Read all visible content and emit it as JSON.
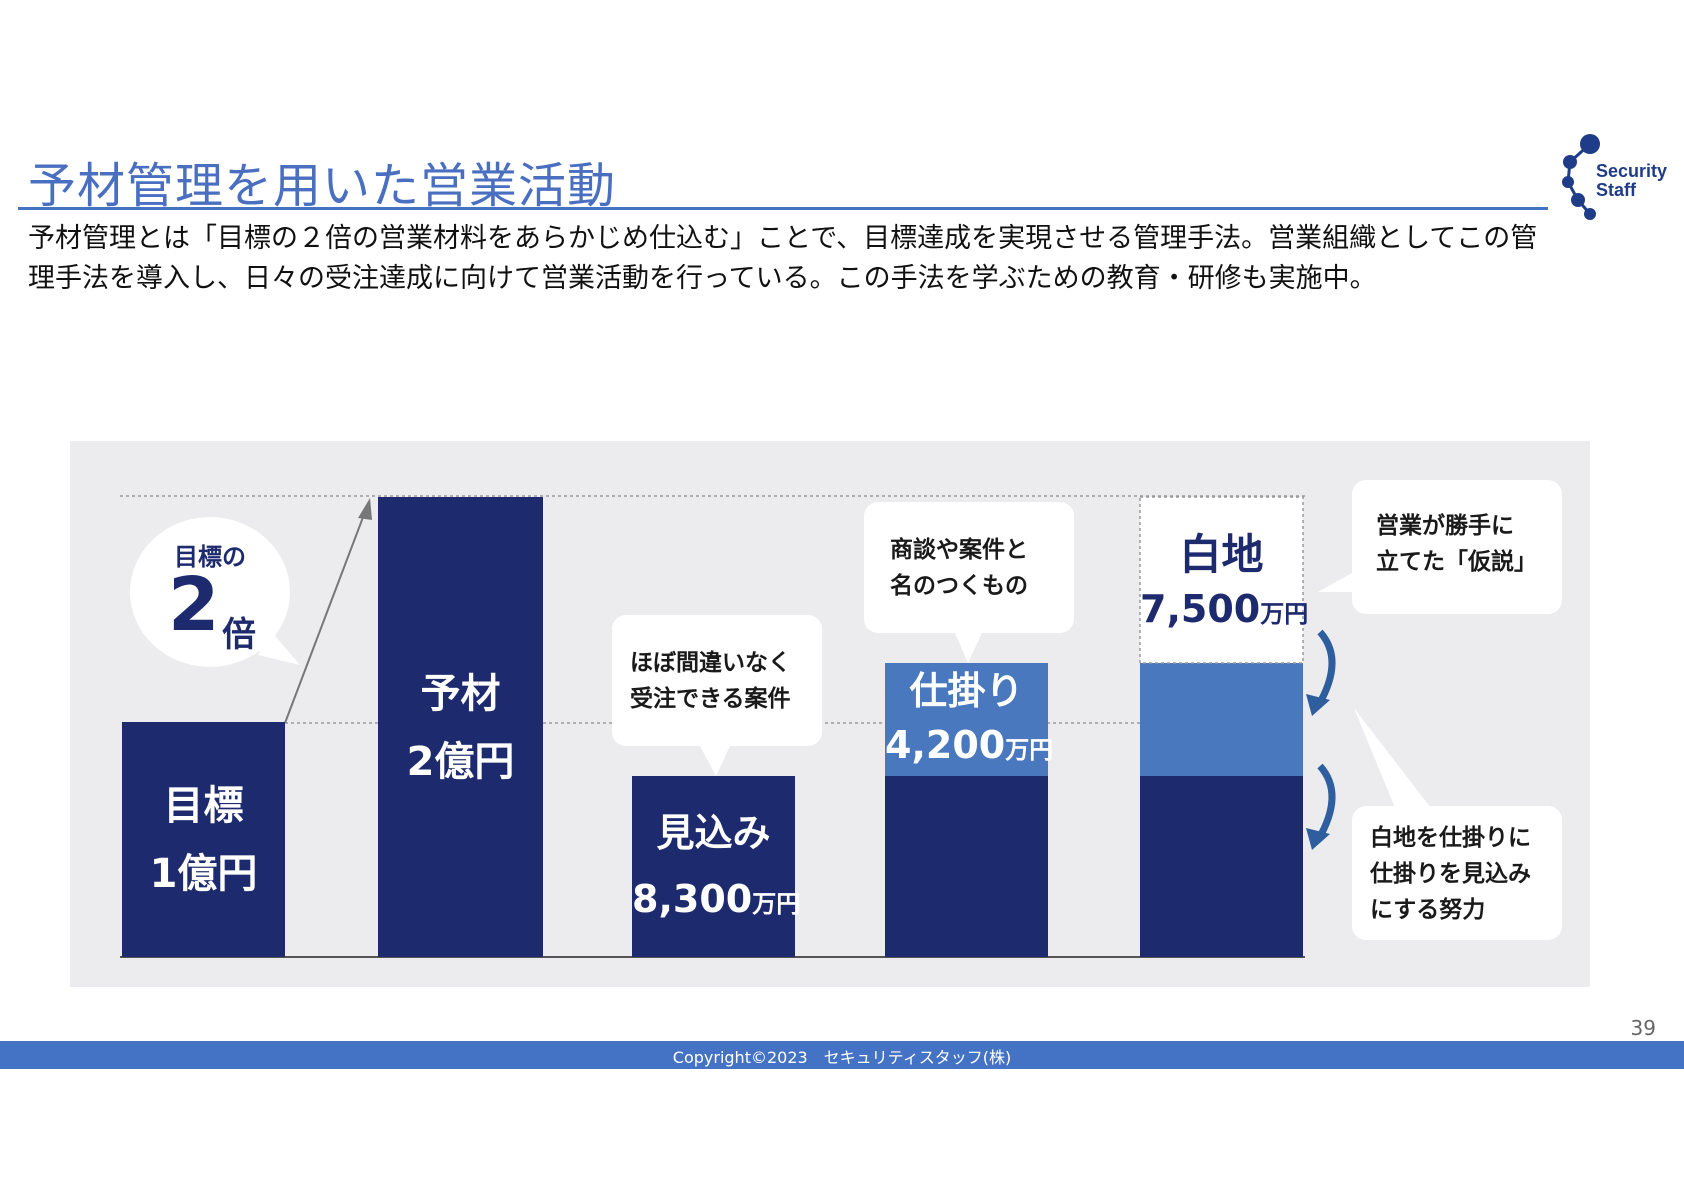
{
  "slide": {
    "title": "予材管理を用いた営業活動",
    "description": "予材管理とは「目標の２倍の営業材料をあらかじめ仕込む」ことで、目標達成を実現させる管理手法。営業組織としてこの管理手法を導入し、日々の受注達成に向けて営業活動を行っている。この手法を学ぶための教育・研修も実施中。",
    "page_number": "39",
    "copyright": "Copyright©2023　セキュリティスタッフ(株)"
  },
  "logo": {
    "line1": "Security",
    "line2": "Staff"
  },
  "colors": {
    "navy": "#1e2a6e",
    "mid_blue": "#4a78be",
    "accent": "#4472c4",
    "panel": "#ececee"
  },
  "circle_callout": {
    "top": "目標の",
    "number": "2",
    "suffix": "倍"
  },
  "bars": {
    "target": {
      "line1": "目標",
      "line2": "1億円"
    },
    "yozai": {
      "line1": "予材",
      "line2": "2億円"
    },
    "mikomi": {
      "label": "見込み",
      "value": "8,300",
      "unit": "万円"
    },
    "shikakari": {
      "label": "仕掛り",
      "value": "4,200",
      "unit": "万円"
    },
    "shiraji": {
      "label": "白地",
      "value": "7,500",
      "unit": "万円"
    }
  },
  "bubbles": {
    "mikomi": {
      "line1": "ほぼ間違いなく",
      "line2": "受注できる案件"
    },
    "shikakari": {
      "line1": "商談や案件と",
      "line2": "名のつくもの"
    },
    "shiraji": {
      "line1": "営業が勝手に",
      "line2": "立てた「仮説」"
    },
    "effort": {
      "line1": "白地を仕掛りに",
      "line2": "仕掛りを見込み",
      "line3": "にする努力"
    }
  },
  "chart_data": {
    "type": "bar",
    "unit": "万円",
    "categories": [
      "目標",
      "予材",
      "見込み",
      "仕掛り",
      "白地"
    ],
    "values": [
      10000,
      20000,
      8300,
      4200,
      7500
    ],
    "stacked_total_bar": {
      "見込み": 8300,
      "仕掛り": 4200,
      "白地": 7500,
      "total": 20000
    },
    "annotation": "目標の2倍"
  }
}
